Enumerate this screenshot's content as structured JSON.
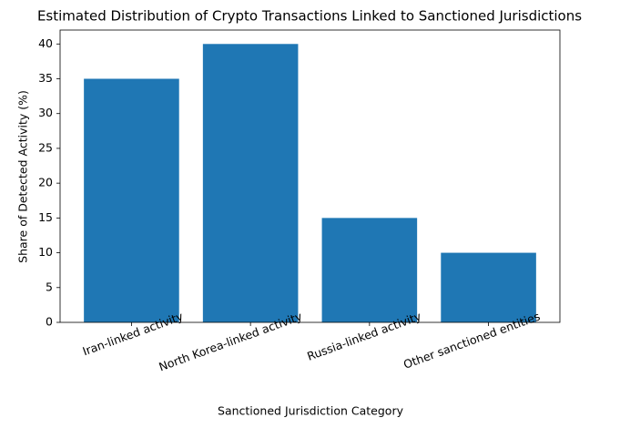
{
  "chart_data": {
    "type": "bar",
    "title": "Estimated Distribution of Crypto Transactions Linked to Sanctioned Jurisdictions",
    "xlabel": "Sanctioned Jurisdiction Category",
    "ylabel": "Share of Detected Activity (%)",
    "categories": [
      "Iran-linked activity",
      "North Korea-linked activity",
      "Russia-linked activity",
      "Other sanctioned entities"
    ],
    "values": [
      35,
      40,
      15,
      10
    ],
    "color": "#1f77b4",
    "ylim": [
      0,
      42
    ],
    "yticks": [
      0,
      5,
      10,
      15,
      20,
      25,
      30,
      35,
      40
    ],
    "grid": false
  }
}
